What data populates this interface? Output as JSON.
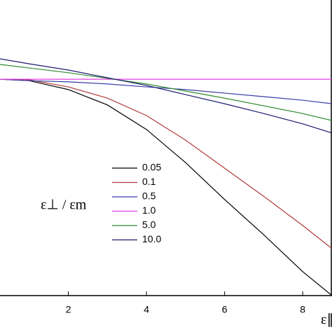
{
  "chart_data": {
    "type": "line",
    "x_label": "ε∥",
    "legend_title": "ε⊥ / εm",
    "x": [
      0.25,
      1,
      2,
      3,
      4,
      5,
      6,
      7,
      8,
      8.75
    ],
    "series": [
      {
        "name": "0.05",
        "color": "#000000",
        "values": [
          0.732,
          0.727,
          0.697,
          0.645,
          0.562,
          0.45,
          0.325,
          0.206,
          0.081,
          0.0
        ]
      },
      {
        "name": "0.1",
        "color": "#b03a3a",
        "values": [
          0.732,
          0.73,
          0.706,
          0.668,
          0.609,
          0.526,
          0.431,
          0.336,
          0.237,
          0.159
        ]
      },
      {
        "name": "0.5",
        "color": "#3a3aa8",
        "values": [
          0.732,
          0.727,
          0.723,
          0.716,
          0.706,
          0.697,
          0.685,
          0.673,
          0.661,
          0.649
        ]
      },
      {
        "name": "1.0",
        "color": "#e040e0",
        "values": [
          0.732,
          0.732,
          0.732,
          0.732,
          0.732,
          0.732,
          0.732,
          0.732,
          0.732,
          0.732
        ]
      },
      {
        "name": "5.0",
        "color": "#2f8a2f",
        "values": [
          0.782,
          0.77,
          0.754,
          0.735,
          0.716,
          0.692,
          0.668,
          0.642,
          0.616,
          0.592
        ]
      },
      {
        "name": "10.0",
        "color": "#1c1c70",
        "values": [
          0.801,
          0.784,
          0.763,
          0.737,
          0.711,
          0.68,
          0.649,
          0.616,
          0.581,
          0.55
        ]
      }
    ],
    "xlim": [
      0.25,
      8.75
    ],
    "xticks": [
      2,
      4,
      6,
      8
    ],
    "ylim": [
      0,
      1
    ]
  }
}
